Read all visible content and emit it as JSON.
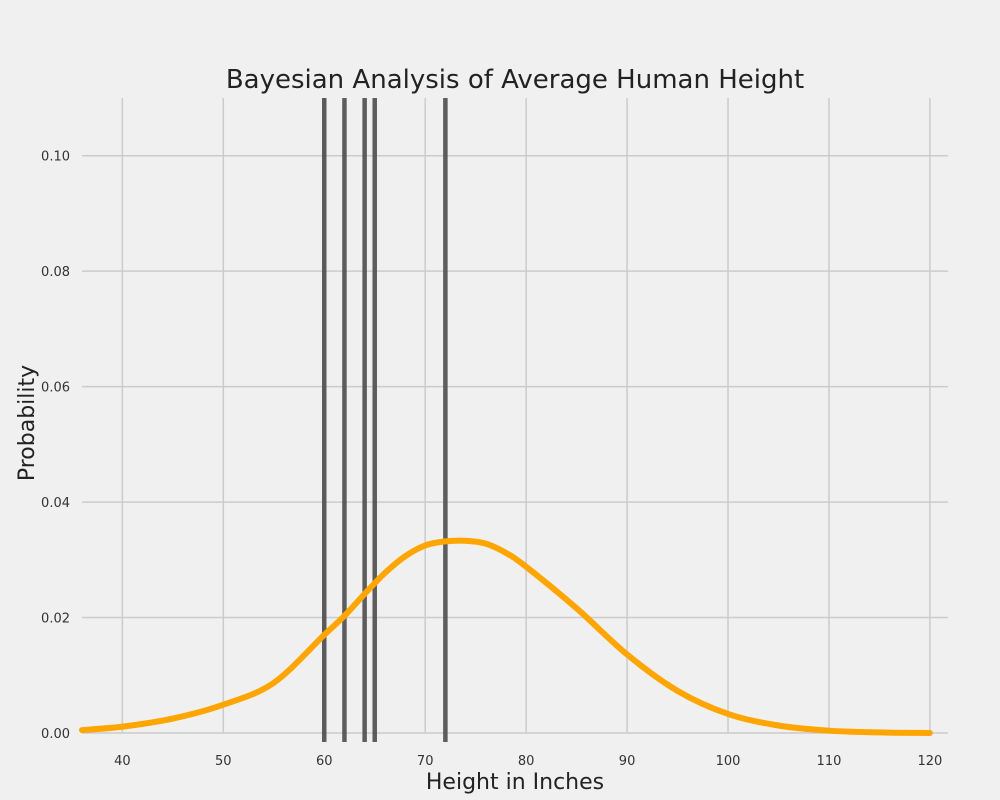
{
  "chart_data": {
    "type": "line",
    "title": "Bayesian Analysis of Average Human Height",
    "xlabel": "Height in Inches",
    "ylabel": "Probability",
    "xlim": [
      36,
      121
    ],
    "ylim": [
      0,
      0.11
    ],
    "x_ticks": [
      "40",
      "50",
      "60",
      "70",
      "80",
      "90",
      "100",
      "110",
      "120"
    ],
    "x_tick_values": [
      40,
      50,
      60,
      70,
      80,
      90,
      100,
      110,
      120
    ],
    "y_ticks": [
      "0.00",
      "0.02",
      "0.04",
      "0.06",
      "0.08",
      "0.10"
    ],
    "y_tick_values": [
      0,
      0.02,
      0.04,
      0.06,
      0.08,
      0.1
    ],
    "grid": true,
    "series": [
      {
        "color": "#ffa500",
        "x": [
          36,
          40,
          45,
          50,
          55,
          60,
          62,
          64,
          66,
          68,
          70,
          72,
          74,
          76,
          78,
          80,
          85,
          90,
          95,
          100,
          105,
          110,
          115,
          120
        ],
        "y": [
          0.0005,
          0.0011,
          0.0025,
          0.0049,
          0.0087,
          0.017,
          0.0203,
          0.0241,
          0.0277,
          0.0306,
          0.0325,
          0.0332,
          0.0333,
          0.0328,
          0.0312,
          0.0288,
          0.0216,
          0.0136,
          0.0073,
          0.0033,
          0.0013,
          0.0004,
          0.0001,
          0.0
        ]
      }
    ],
    "vertical_lines": {
      "color": "#4d4d4d",
      "x": [
        60,
        62,
        64,
        65,
        72
      ]
    }
  }
}
